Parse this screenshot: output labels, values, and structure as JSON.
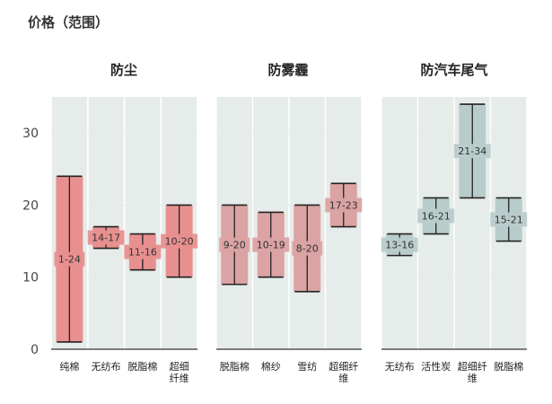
{
  "chart_data": {
    "type": "floating-bar",
    "title": "价格（范围）",
    "ylim": [
      0,
      35
    ],
    "yticks": [
      0,
      10,
      20,
      30
    ],
    "grid": true,
    "panels": [
      {
        "title": "防尘",
        "color": "#e89090",
        "categories": [
          "纯棉",
          "无纺布",
          "脱脂棉",
          "超细\n纤维"
        ],
        "ranges": [
          [
            1,
            24
          ],
          [
            14,
            17
          ],
          [
            11,
            16
          ],
          [
            10,
            20
          ]
        ],
        "labels": [
          "1-24",
          "14-17",
          "11-16",
          "10-20"
        ]
      },
      {
        "title": "防雾霾",
        "color": "#dba3a3",
        "categories": [
          "脱脂棉",
          "棉纱",
          "雪纺",
          "超细纤\n维"
        ],
        "ranges": [
          [
            9,
            20
          ],
          [
            10,
            19
          ],
          [
            8,
            20
          ],
          [
            17,
            23
          ]
        ],
        "labels": [
          "9-20",
          "10-19",
          "8-20",
          "17-23"
        ]
      },
      {
        "title": "防汽车尾气",
        "color": "#b9cccc",
        "categories": [
          "无纺布",
          "活性炭",
          "超细纤\n维",
          "脱脂棉"
        ],
        "ranges": [
          [
            13,
            16
          ],
          [
            16,
            21
          ],
          [
            21,
            34
          ],
          [
            15,
            21
          ]
        ],
        "labels": [
          "13-16",
          "16-21",
          "21-34",
          "15-21"
        ]
      }
    ],
    "colors": {
      "track": "#e6ecea",
      "axis": "#333333",
      "whisker": "#222222"
    }
  }
}
